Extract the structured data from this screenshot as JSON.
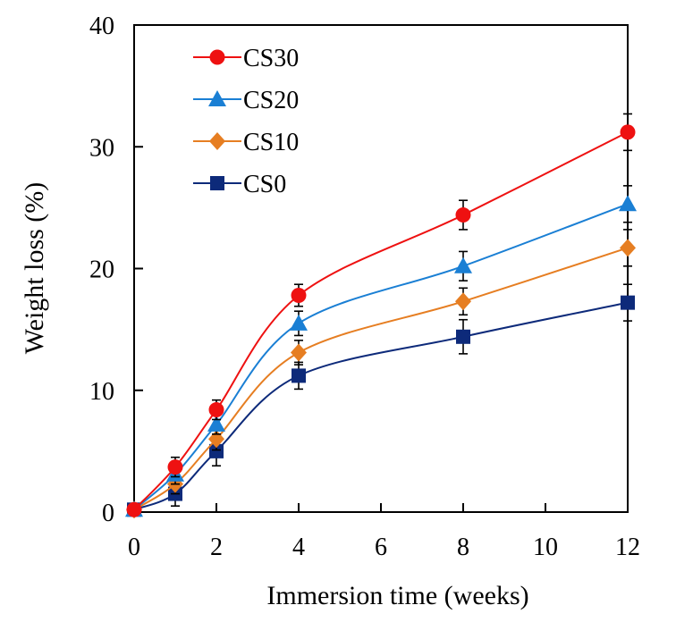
{
  "chart_data": {
    "type": "line",
    "xlabel": "Immersion time (weeks)",
    "ylabel": "Weight loss (%)",
    "xlim": [
      0,
      12
    ],
    "ylim": [
      0,
      40
    ],
    "xticks": [
      0,
      2,
      4,
      6,
      8,
      10,
      12
    ],
    "yticks": [
      0,
      10,
      20,
      30,
      40
    ],
    "grid": false,
    "legend_position": "top-left",
    "x": [
      0,
      1,
      2,
      4,
      8,
      12
    ],
    "series": [
      {
        "name": "CS30",
        "color": "#ee1111",
        "marker": "circle",
        "values": [
          0.2,
          3.7,
          8.4,
          17.8,
          24.4,
          31.2
        ],
        "errors": [
          0.3,
          0.8,
          0.8,
          0.9,
          1.2,
          1.5
        ]
      },
      {
        "name": "CS20",
        "color": "#1a7fd4",
        "marker": "triangle",
        "values": [
          0.2,
          3.1,
          7.2,
          15.5,
          20.2,
          25.3
        ],
        "errors": [
          0.3,
          0.8,
          0.8,
          1.0,
          1.2,
          1.5
        ]
      },
      {
        "name": "CS10",
        "color": "#e67e22",
        "marker": "diamond",
        "values": [
          0.2,
          2.3,
          6.0,
          13.1,
          17.3,
          21.7
        ],
        "errors": [
          0.3,
          0.8,
          0.9,
          1.0,
          1.1,
          1.5
        ]
      },
      {
        "name": "CS0",
        "color": "#0d2a7a",
        "marker": "square",
        "values": [
          0.2,
          1.5,
          5.0,
          11.2,
          14.4,
          17.2
        ],
        "errors": [
          0.3,
          1.0,
          1.2,
          1.1,
          1.4,
          1.5
        ]
      }
    ]
  }
}
